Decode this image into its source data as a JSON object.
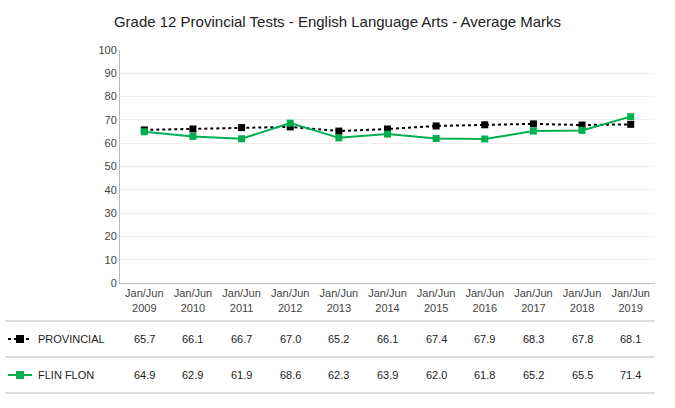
{
  "chart_data": {
    "type": "line",
    "title": "Grade 12 Provincial Tests - English Language Arts - Average Marks",
    "categories": [
      "Jan/Jun\n2009",
      "Jan/Jun\n2010",
      "Jan/Jun\n2011",
      "Jan/Jun\n2012",
      "Jan/Jun\n2013",
      "Jan/Jun\n2014",
      "Jan/Jun\n2015",
      "Jan/Jun\n2016",
      "Jan/Jun\n2017",
      "Jan/Jun\n2018",
      "Jan/Jun\n2019"
    ],
    "series": [
      {
        "name": "PROVINCIAL",
        "color": "#000000",
        "line_style": "dotted",
        "marker": "square",
        "values": [
          65.7,
          66.1,
          66.7,
          67.0,
          65.2,
          66.1,
          67.4,
          67.9,
          68.3,
          67.8,
          68.1
        ],
        "value_labels": [
          "65.7",
          "66.1",
          "66.7",
          "67.0",
          "65.2",
          "66.1",
          "67.4",
          "67.9",
          "68.3",
          "67.8",
          "68.1"
        ]
      },
      {
        "name": "FLIN FLON",
        "color": "#00b050",
        "line_style": "solid",
        "marker": "square",
        "values": [
          64.9,
          62.9,
          61.9,
          68.6,
          62.3,
          63.9,
          62.0,
          61.8,
          65.2,
          65.5,
          71.4
        ],
        "value_labels": [
          "64.9",
          "62.9",
          "61.9",
          "68.6",
          "62.3",
          "63.9",
          "62.0",
          "61.8",
          "65.2",
          "65.5",
          "71.4"
        ]
      }
    ],
    "ylim": [
      0,
      100
    ],
    "yticks": [
      0,
      10,
      20,
      30,
      40,
      50,
      60,
      70,
      80,
      90,
      100
    ],
    "grid": true,
    "data_labels": true
  }
}
